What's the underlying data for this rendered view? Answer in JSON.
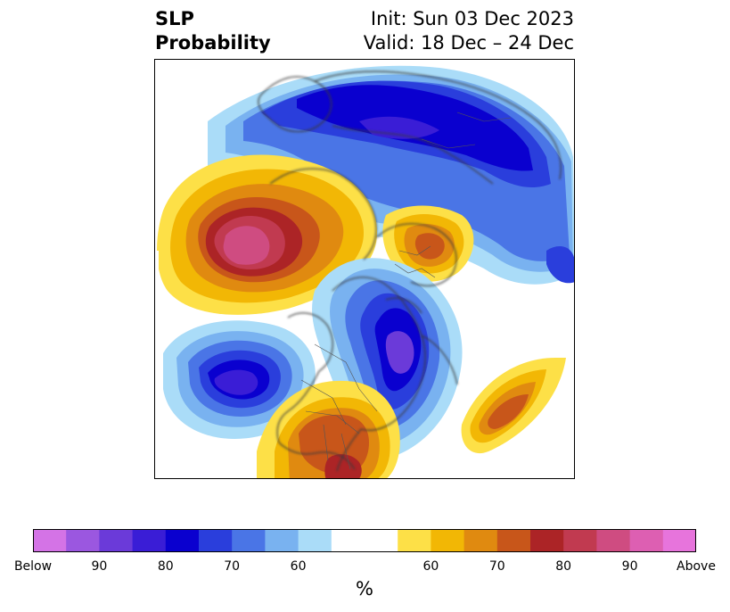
{
  "title": {
    "left_line1": "SLP",
    "left_line2": "Probability",
    "right_line1": "Init: Sun 03 Dec 2023",
    "right_line2": "Valid: 18 Dec – 24 Dec"
  },
  "colorbar": {
    "colors": [
      "#d473e6",
      "#9b57e0",
      "#6b3ad9",
      "#3a1dd6",
      "#0a00cf",
      "#2a3edc",
      "#4a75e6",
      "#79b2f0",
      "#aadcf8",
      "#ffffff",
      "#ffffff",
      "#fde047",
      "#f2b705",
      "#e08a10",
      "#c8561a",
      "#ac2426",
      "#c13a50",
      "#cf4c81",
      "#dd5fb2",
      "#e774dc"
    ],
    "tick_labels": [
      "Below",
      "90",
      "80",
      "70",
      "60",
      "60",
      "70",
      "80",
      "90",
      "Above"
    ],
    "unit": "%"
  },
  "palette": {
    "land": "#ffffff",
    "coastline": "#3a3a3a",
    "frame": "#000000"
  }
}
